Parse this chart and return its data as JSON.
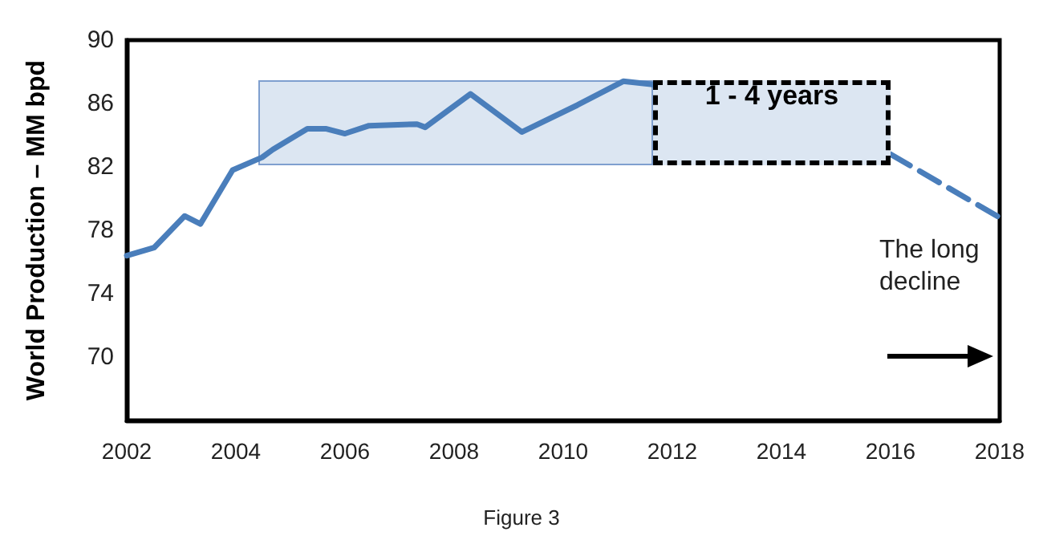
{
  "chart_data": {
    "type": "line",
    "ylabel": "World Production – MM bpd",
    "xlim": [
      2002,
      2018
    ],
    "xticks": [
      2002,
      2004,
      2006,
      2008,
      2010,
      2012,
      2014,
      2016,
      2018
    ],
    "ylim": [
      66,
      90
    ],
    "yticks": [
      70,
      74,
      78,
      82,
      86,
      90
    ],
    "grid": false,
    "marker": "none",
    "series": [
      {
        "color": "#4a7ebb",
        "line_style": "solid",
        "x": [
          2002.0,
          2002.5,
          2003.06,
          2003.35,
          2003.94,
          2004.48,
          2004.68,
          2005.31,
          2005.66,
          2006.0,
          2006.44,
          2007.32,
          2007.47,
          2008.3,
          2009.24,
          2010.26,
          2011.1,
          2011.64
        ],
        "values": [
          76.4,
          76.9,
          78.9,
          78.4,
          81.8,
          82.6,
          83.1,
          84.4,
          84.4,
          84.1,
          84.6,
          84.7,
          84.5,
          86.6,
          84.2,
          85.9,
          87.4,
          87.2
        ]
      },
      {
        "color": "#4a7ebb",
        "line_style": "dashed",
        "x": [
          2016.0,
          2018.0
        ],
        "values": [
          82.8,
          78.8
        ]
      }
    ],
    "annotations": [
      "1 - 4 years",
      "The long decline",
      "Figure 3"
    ]
  }
}
